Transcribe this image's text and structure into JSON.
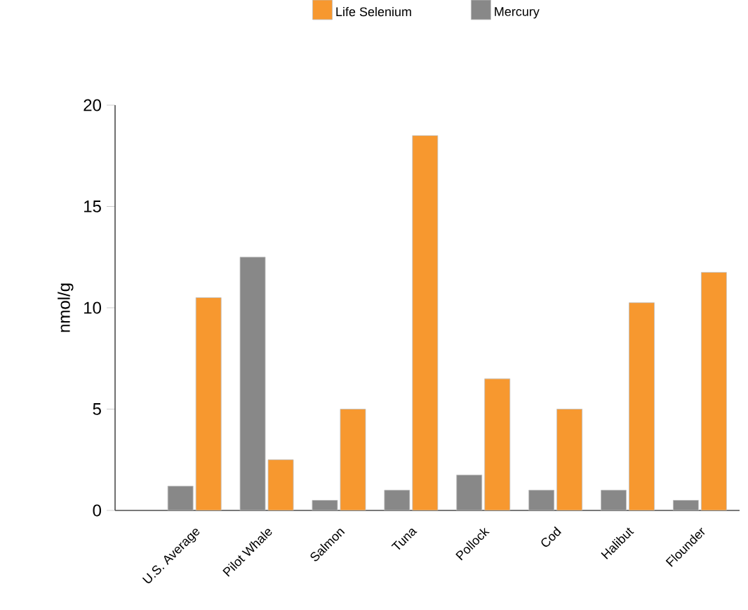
{
  "chart_data": {
    "type": "bar",
    "ylabel": "nmol/g",
    "categories": [
      "U.S. Average",
      "Pilot Whale",
      "Salmon",
      "Tuna",
      "Pollock",
      "Cod",
      "Halibut",
      "Flounder"
    ],
    "series": [
      {
        "name": "Mercury",
        "color": "#888888",
        "values": [
          1.2,
          12.5,
          0.5,
          1.0,
          1.75,
          1.0,
          1.0,
          0.5
        ]
      },
      {
        "name": "Life Selenium",
        "color": "#f7982f",
        "values": [
          10.5,
          2.5,
          5.0,
          18.5,
          6.5,
          5.0,
          10.25,
          11.75
        ]
      }
    ],
    "ylim": [
      0,
      20
    ],
    "yticks": [
      0,
      5,
      10,
      15,
      20
    ],
    "legend": "top"
  }
}
